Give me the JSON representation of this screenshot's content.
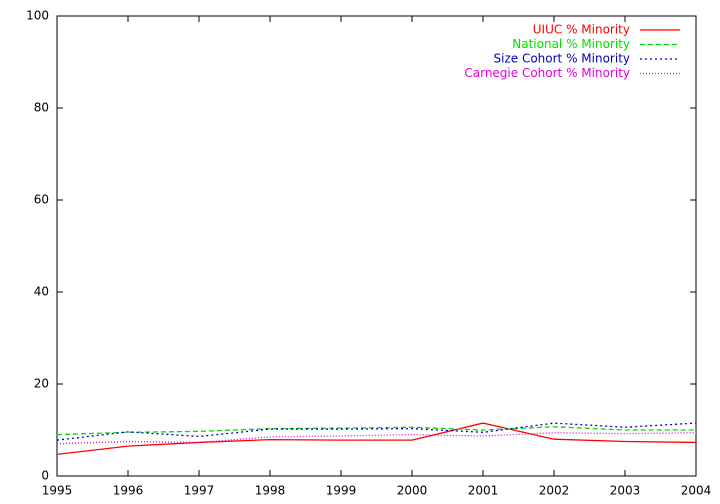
{
  "chart_data": {
    "type": "line",
    "x": [
      1995,
      1996,
      1997,
      1998,
      1999,
      2000,
      2001,
      2002,
      2003,
      2004
    ],
    "xlim": [
      1995,
      2004
    ],
    "xticks": [
      1995,
      1996,
      1997,
      1998,
      1999,
      2000,
      2001,
      2002,
      2003,
      2004
    ],
    "ylim": [
      0,
      100
    ],
    "yticks": [
      0,
      20,
      40,
      60,
      80,
      100
    ],
    "legend": "top-right",
    "series": [
      {
        "name": "UIUC % Minority",
        "color": "#ff0000",
        "dash": "solid",
        "values": [
          4.7,
          6.5,
          7.3,
          7.9,
          7.8,
          7.8,
          11.5,
          8.0,
          7.5,
          7.3
        ]
      },
      {
        "name": "National % Minority",
        "color": "#00e000",
        "dash": "dashed",
        "values": [
          9.0,
          9.5,
          9.7,
          10.3,
          10.4,
          10.6,
          10.0,
          10.7,
          10.0,
          10.0
        ]
      },
      {
        "name": "Size Cohort % Minority",
        "color": "#0000c0",
        "dash": "dotted",
        "values": [
          7.8,
          9.6,
          8.6,
          10.2,
          10.2,
          10.3,
          9.5,
          11.5,
          10.6,
          11.5
        ]
      },
      {
        "name": "Carnegie Cohort % Minority",
        "color": "#e000e0",
        "dash": "fine",
        "values": [
          7.0,
          7.5,
          7.3,
          8.5,
          8.7,
          9.0,
          8.7,
          9.4,
          9.2,
          9.4
        ]
      }
    ]
  }
}
